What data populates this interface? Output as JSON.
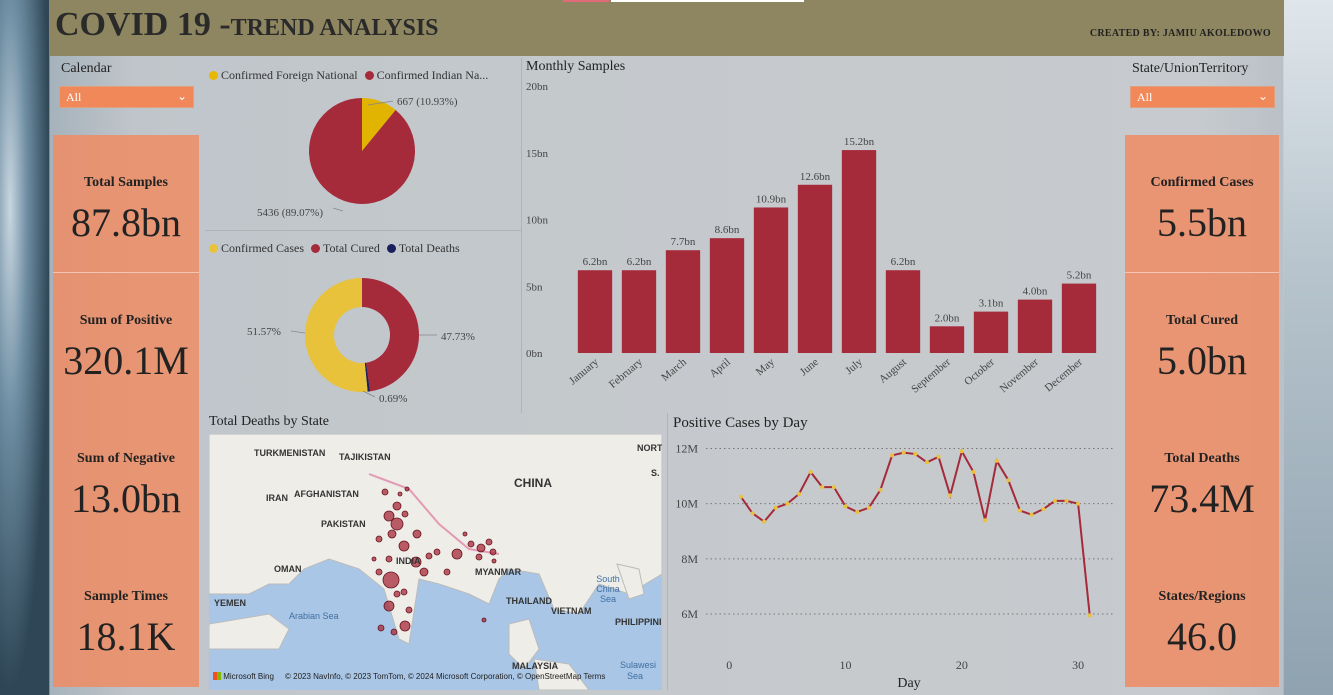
{
  "header": {
    "title_main": "COVID 19 -",
    "title_sub": "TREND ANALYSIS",
    "credit": "CREATED BY: JAMIU AKOLEDOWO"
  },
  "left_slicer": {
    "label": "Calendar",
    "value": "All"
  },
  "right_slicer": {
    "label": "State/UnionTerritory",
    "value": "All"
  },
  "left_kpis": [
    {
      "label": "Total Samples",
      "value": "87.8bn"
    },
    {
      "label": "Sum of Positive",
      "value": "320.1M"
    },
    {
      "label": "Sum of Negative",
      "value": "13.0bn"
    },
    {
      "label": "Sample Times",
      "value": "18.1K"
    }
  ],
  "right_kpis": [
    {
      "label": "Confirmed Cases",
      "value": "5.5bn"
    },
    {
      "label": "Total Cured",
      "value": "5.0bn"
    },
    {
      "label": "Total Deaths",
      "value": "73.4M"
    },
    {
      "label": "States/Regions",
      "value": "46.0"
    }
  ],
  "pie1": {
    "legend": [
      "Confirmed Foreign National",
      "Confirmed Indian Na..."
    ],
    "label_small": "667 (10.93%)",
    "label_large": "5436 (89.07%)"
  },
  "pie2": {
    "legend": [
      "Confirmed Cases",
      "Total Cured",
      "Total Deaths"
    ],
    "label_left": "51.57%",
    "label_right": "47.73%",
    "label_bottom": "0.69%"
  },
  "map": {
    "title": "Total Deaths by State",
    "labels": [
      "TURKMENISTAN",
      "TAJIKISTAN",
      "AFGHANISTAN",
      "IRAN",
      "PAKISTAN",
      "INDIA",
      "CHINA",
      "OMAN",
      "YEMEN",
      "MYANMAR",
      "THAILAND",
      "VIETNAM",
      "PHILIPPINI",
      "MALAYSIA",
      "NORT",
      "S."
    ],
    "seas": [
      "Arabian Sea",
      "South China Sea",
      "Sulawesi",
      "Sea"
    ],
    "bing": "Microsoft Bing",
    "credit": "© 2023 NavInfo, © 2023 TomTom, © 2024 Microsoft Corporation, © OpenStreetMap  Terms"
  },
  "colors": {
    "red": "#a52a3a",
    "yellow": "#e8c23a",
    "navy": "#1b1f5e",
    "orange": "#ef8c64"
  },
  "chart_data": [
    {
      "type": "bar",
      "title": "Monthly Samples",
      "categories": [
        "January",
        "February",
        "March",
        "April",
        "May",
        "June",
        "July",
        "August",
        "September",
        "October",
        "November",
        "December"
      ],
      "values": [
        6.2,
        6.2,
        7.7,
        8.6,
        10.9,
        12.6,
        15.2,
        6.2,
        2.0,
        3.1,
        4.0,
        5.2
      ],
      "data_labels": [
        "6.2bn",
        "6.2bn",
        "7.7bn",
        "8.6bn",
        "10.9bn",
        "12.6bn",
        "15.2bn",
        "6.2bn",
        "2.0bn",
        "3.1bn",
        "4.0bn",
        "5.2bn"
      ],
      "yticks": [
        "0bn",
        "5bn",
        "10bn",
        "15bn",
        "20bn"
      ],
      "ylim": [
        0,
        20
      ]
    },
    {
      "type": "line",
      "title": "Positive Cases by Day",
      "xlabel": "Day",
      "x": [
        1,
        2,
        3,
        4,
        5,
        6,
        7,
        8,
        9,
        10,
        11,
        12,
        13,
        14,
        15,
        16,
        17,
        18,
        19,
        20,
        21,
        22,
        23,
        24,
        25,
        26,
        27,
        28,
        29,
        30,
        31
      ],
      "values": [
        10.25,
        9.65,
        9.35,
        9.85,
        10.0,
        10.35,
        11.15,
        10.6,
        10.6,
        9.9,
        9.7,
        9.85,
        10.5,
        11.75,
        11.85,
        11.8,
        11.5,
        11.7,
        10.3,
        11.9,
        11.15,
        9.4,
        11.55,
        10.85,
        9.75,
        9.6,
        9.8,
        10.1,
        10.1,
        10.0,
        5.95
      ],
      "xticks": [
        "0",
        "10",
        "20",
        "30"
      ],
      "yticks": [
        "6M",
        "8M",
        "10M",
        "12M"
      ],
      "ylim": [
        5.6,
        12.2
      ]
    },
    {
      "type": "pie",
      "categories": [
        "Confirmed Foreign National",
        "Confirmed Indian National"
      ],
      "values": [
        667,
        5436
      ]
    },
    {
      "type": "pie",
      "categories": [
        "Confirmed Cases",
        "Total Cured",
        "Total Deaths"
      ],
      "values": [
        51.57,
        47.73,
        0.69
      ]
    }
  ]
}
